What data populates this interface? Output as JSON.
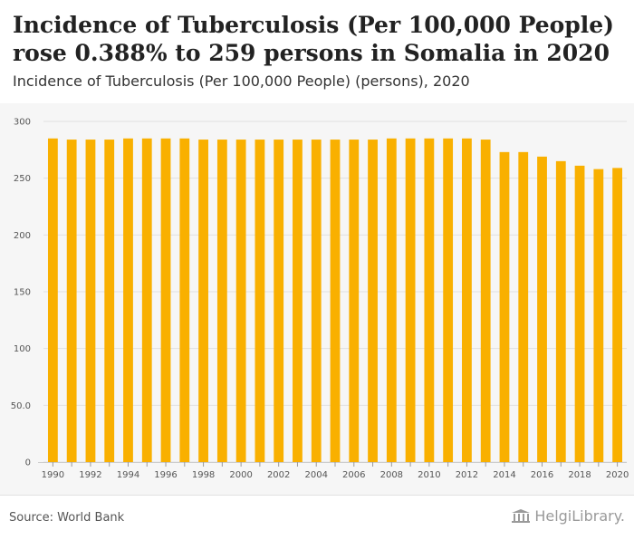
{
  "header": {
    "title": "Incidence of Tuberculosis (Per 100,000 People) rose 0.388% to 259 persons in Somalia in 2020",
    "subtitle": "Incidence of Tuberculosis (Per 100,000 People) (persons), 2020"
  },
  "footer": {
    "source": "Source: World Bank",
    "logo_text": "HelgiLibrary."
  },
  "colors": {
    "bar": "#f9b000",
    "grid": "#e0e0e0"
  },
  "chart_data": {
    "type": "bar",
    "title": "",
    "xlabel": "",
    "ylabel": "",
    "ylim": [
      0,
      300
    ],
    "yticks": [
      0,
      50,
      100,
      150,
      200,
      250,
      300
    ],
    "ytick_labels": [
      "0",
      "50.0",
      "100",
      "150",
      "200",
      "250",
      "300"
    ],
    "categories": [
      1990,
      1991,
      1992,
      1993,
      1994,
      1995,
      1996,
      1997,
      1998,
      1999,
      2000,
      2001,
      2002,
      2003,
      2004,
      2005,
      2006,
      2007,
      2008,
      2009,
      2010,
      2011,
      2012,
      2013,
      2014,
      2015,
      2016,
      2017,
      2018,
      2019,
      2020
    ],
    "xtick_labels": [
      "1990",
      "1992",
      "1994",
      "1996",
      "1998",
      "2000",
      "2002",
      "2004",
      "2006",
      "2008",
      "2010",
      "2012",
      "2014",
      "2016",
      "2018",
      "2020"
    ],
    "values": [
      285,
      284,
      284,
      284,
      285,
      285,
      285,
      285,
      284,
      284,
      284,
      284,
      284,
      284,
      284,
      284,
      284,
      284,
      285,
      285,
      285,
      285,
      285,
      284,
      273,
      273,
      269,
      265,
      261,
      258,
      259
    ],
    "grid": true
  }
}
